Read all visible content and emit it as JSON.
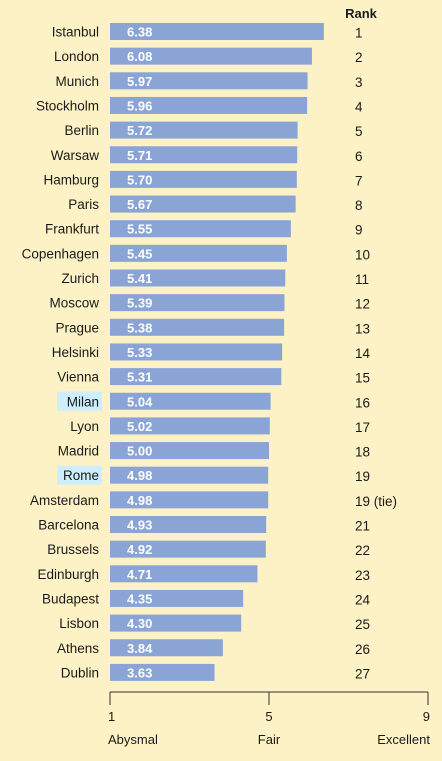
{
  "chart_data": {
    "type": "bar",
    "orientation": "horizontal",
    "rank_header": "Rank",
    "categories": [
      "Istanbul",
      "London",
      "Munich",
      "Stockholm",
      "Berlin",
      "Warsaw",
      "Hamburg",
      "Paris",
      "Frankfurt",
      "Copenhagen",
      "Zurich",
      "Moscow",
      "Prague",
      "Helsinki",
      "Vienna",
      "Milan",
      "Lyon",
      "Madrid",
      "Rome",
      "Amsterdam",
      "Barcelona",
      "Brussels",
      "Edinburgh",
      "Budapest",
      "Lisbon",
      "Athens",
      "Dublin"
    ],
    "values": [
      6.38,
      6.08,
      5.97,
      5.96,
      5.72,
      5.71,
      5.7,
      5.67,
      5.55,
      5.45,
      5.41,
      5.39,
      5.38,
      5.33,
      5.31,
      5.04,
      5.02,
      5.0,
      4.98,
      4.98,
      4.93,
      4.92,
      4.71,
      4.35,
      4.3,
      3.84,
      3.63
    ],
    "value_labels": [
      "6.38",
      "6.08",
      "5.97",
      "5.96",
      "5.72",
      "5.71",
      "5.70",
      "5.67",
      "5.55",
      "5.45",
      "5.41",
      "5.39",
      "5.38",
      "5.33",
      "5.31",
      "5.04",
      "5.02",
      "5.00",
      "4.98",
      "4.98",
      "4.93",
      "4.92",
      "4.71",
      "4.35",
      "4.30",
      "3.84",
      "3.63"
    ],
    "ranks": [
      "1",
      "2",
      "3",
      "4",
      "5",
      "6",
      "7",
      "8",
      "9",
      "10",
      "11",
      "12",
      "13",
      "14",
      "15",
      "16",
      "17",
      "18",
      "19",
      "19 (tie)",
      "21",
      "22",
      "23",
      "24",
      "25",
      "26",
      "27"
    ],
    "highlighted": [
      "Milan",
      "Rome"
    ],
    "xlim": [
      1,
      9
    ],
    "x_ticks": [
      "1",
      "5",
      "9"
    ],
    "x_tick_captions": [
      "Abysmal",
      "Fair",
      "Excellent"
    ],
    "grid": false,
    "colors": {
      "background": "#fdf2c5",
      "bar": "#8aa4d6",
      "highlight": "#cdeefa",
      "axis": "#333333"
    }
  }
}
